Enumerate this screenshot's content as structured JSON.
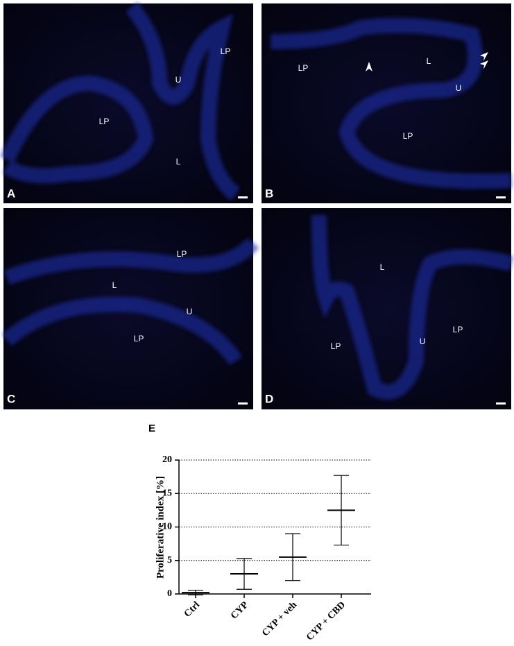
{
  "panels": [
    {
      "letter": "A",
      "labels": [
        "LP",
        "U",
        "LP",
        "L"
      ]
    },
    {
      "letter": "B",
      "labels": [
        "LP",
        "L",
        "U",
        "LP"
      ]
    },
    {
      "letter": "C",
      "labels": [
        "LP",
        "L",
        "U",
        "LP"
      ]
    },
    {
      "letter": "D",
      "labels": [
        "L",
        "LP",
        "LP",
        "U"
      ]
    }
  ],
  "chart_data": {
    "type": "errorbar",
    "panel_letter": "E",
    "ylabel": "Proliferative index [%]",
    "categories": [
      "Ctrl",
      "CYP",
      "CYP + veh",
      "CYP + CBD"
    ],
    "values": [
      0.2,
      3.0,
      5.5,
      12.5
    ],
    "errors": [
      0.35,
      2.3,
      3.5,
      5.2
    ],
    "ylim": [
      0,
      20
    ],
    "yticks": [
      0,
      5,
      10,
      15,
      20
    ],
    "grid": true,
    "color": "#000000"
  }
}
